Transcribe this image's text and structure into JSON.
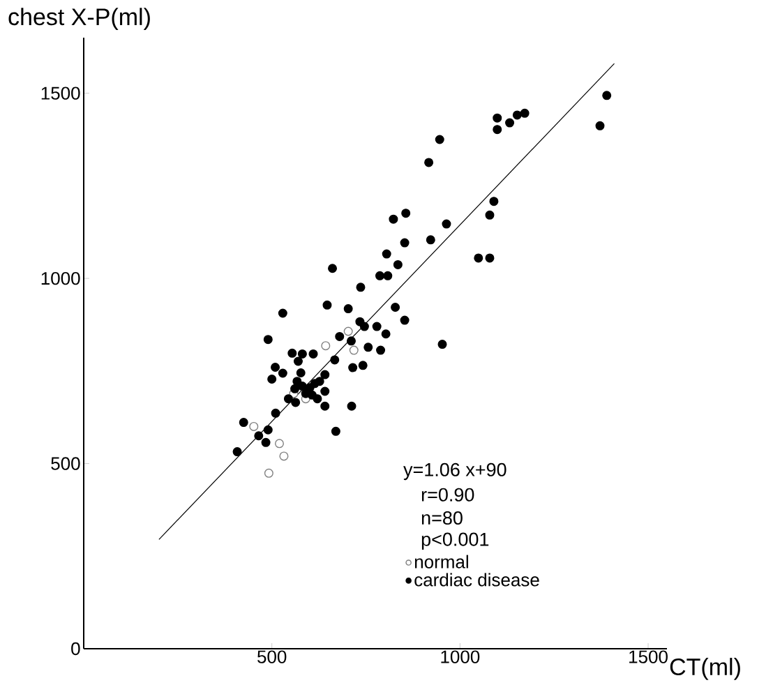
{
  "chart_data": {
    "type": "scatter",
    "xlabel": "CT(ml)",
    "ylabel": "chest X-P(ml)",
    "annotations": [
      "y=1.06 x+90",
      "r=0.90",
      "n=80",
      "p<0.001"
    ],
    "xlim": [
      0,
      1550
    ],
    "ylim": [
      0,
      1650
    ],
    "xticks": [
      500,
      1000,
      1500
    ],
    "yticks": [
      0,
      500,
      1000,
      1500
    ],
    "grid": false,
    "legend": "bottom right",
    "series": [
      {
        "name": "normal",
        "marker": "circle",
        "color": "#808080",
        "x": [
          452,
          520,
          532,
          492,
          643,
          703,
          718,
          558,
          590
        ],
        "values": [
          600,
          554,
          520,
          474,
          818,
          857,
          806,
          689,
          675
        ]
      },
      {
        "name": "cardiac disease",
        "marker": "circle",
        "color": "#000000",
        "x": [
          1390,
          1372,
          1099,
          1099,
          1132,
          1152,
          1172,
          946,
          917,
          1090,
          1079,
          964,
          856,
          823,
          853,
          922,
          805,
          835,
          1049,
          1079,
          661,
          787,
          808,
          736,
          647,
          703,
          828,
          529,
          734,
          853,
          746,
          779,
          803,
          953,
          490,
          680,
          711,
          756,
          789,
          554,
          581,
          610,
          570,
          667,
          715,
          742,
          509,
          529,
          500,
          577,
          641,
          567,
          561,
          581,
          601,
          614,
          627,
          590,
          607,
          641,
          621,
          544,
          563,
          641,
          712,
          510,
          670,
          425,
          490,
          465,
          484,
          408
        ],
        "values": [
          1494,
          1412,
          1433,
          1402,
          1420,
          1441,
          1446,
          1375,
          1313,
          1208,
          1171,
          1147,
          1176,
          1160,
          1096,
          1104,
          1066,
          1037,
          1055,
          1055,
          1027,
          1007,
          1007,
          976,
          928,
          918,
          922,
          906,
          883,
          887,
          870,
          870,
          850,
          822,
          835,
          843,
          831,
          814,
          806,
          798,
          796,
          796,
          776,
          780,
          759,
          765,
          760,
          744,
          728,
          745,
          740,
          722,
          702,
          709,
          705,
          716,
          722,
          689,
          685,
          695,
          675,
          675,
          665,
          655,
          655,
          636,
          587,
          611,
          591,
          575,
          557,
          532
        ]
      },
      {
        "type": "line",
        "marker": "none",
        "color": "#000000",
        "x": [
          200,
          1410
        ],
        "values": [
          295,
          1580
        ]
      }
    ]
  }
}
